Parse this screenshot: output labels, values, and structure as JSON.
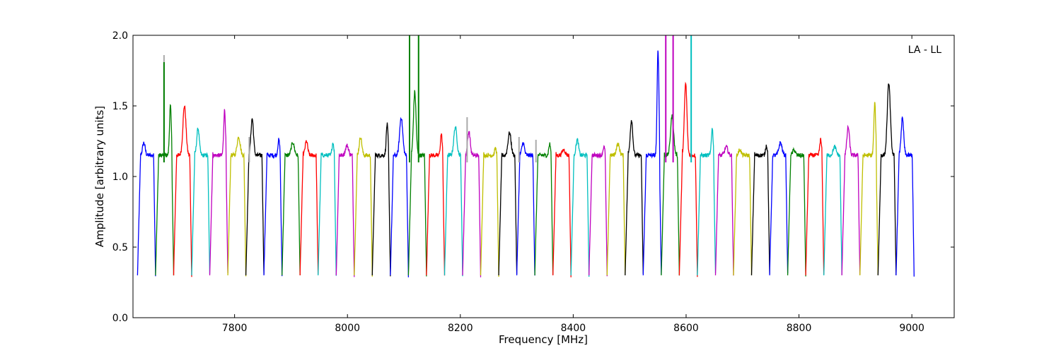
{
  "chart_data": {
    "type": "line",
    "title": "",
    "xlabel": "Frequency [MHz]",
    "ylabel": "Amplitude [arbitrary units]",
    "xlim": [
      7620,
      9075
    ],
    "ylim": [
      0.0,
      2.0
    ],
    "xticks": [
      7800,
      8000,
      8200,
      8400,
      8600,
      8800,
      9000
    ],
    "yticks": [
      0.0,
      0.5,
      1.0,
      1.5,
      2.0
    ],
    "xtick_labels": [
      "7800",
      "8000",
      "8200",
      "8400",
      "8600",
      "8800",
      "9000"
    ],
    "ytick_labels": [
      "0.0",
      "0.5",
      "1.0",
      "1.5",
      "2.0"
    ],
    "annotation": "LA - LL",
    "grid": false,
    "band_width_mhz": 32,
    "first_band_start_mhz": 7628,
    "colors": [
      "#0000ff",
      "#008000",
      "#ff0000",
      "#00bfbf",
      "#bf00bf",
      "#bfbf00",
      "#000000"
    ],
    "band_peaks": [
      1.24,
      1.5,
      1.5,
      1.34,
      1.47,
      1.28,
      1.41,
      1.26,
      1.24,
      1.25,
      1.24,
      1.22,
      1.28,
      1.37,
      1.42,
      1.6,
      1.3,
      1.35,
      1.32,
      1.2,
      1.31,
      1.24,
      1.23,
      1.19,
      1.26,
      1.21,
      1.23,
      1.4,
      1.9,
      1.43,
      1.66,
      1.34,
      1.21,
      1.19,
      1.22,
      1.24,
      1.19,
      1.26,
      1.21,
      1.35,
      1.52,
      1.66,
      1.41
    ],
    "rfi_spikes": [
      {
        "x": 7675,
        "y": 1.86,
        "color": "#aaaaaa"
      },
      {
        "x": 7675,
        "y": 1.81,
        "color": "#008000"
      },
      {
        "x": 7826,
        "y": 1.28,
        "color": "#aaaaaa"
      },
      {
        "x": 8110,
        "y": 2.0,
        "color": "#008000"
      },
      {
        "x": 8126,
        "y": 2.0,
        "color": "#008000"
      },
      {
        "x": 8212,
        "y": 1.42,
        "color": "#aaaaaa"
      },
      {
        "x": 8304,
        "y": 1.28,
        "color": "#aaaaaa"
      },
      {
        "x": 8334,
        "y": 1.26,
        "color": "#aaaaaa"
      },
      {
        "x": 8564,
        "y": 2.0,
        "color": "#bf00bf"
      },
      {
        "x": 8577,
        "y": 2.0,
        "color": "#bf00bf"
      },
      {
        "x": 8609,
        "y": 2.0,
        "color": "#00bfbf"
      }
    ]
  }
}
